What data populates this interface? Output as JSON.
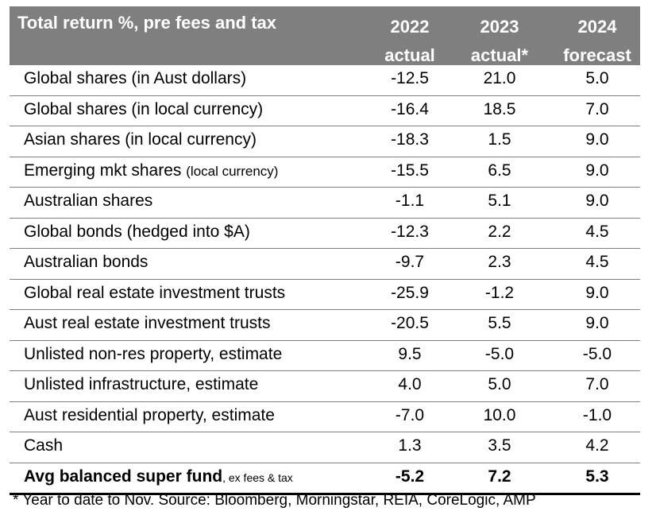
{
  "chart_data": {
    "type": "table",
    "header": {
      "title": "Total return %, pre fees and tax",
      "columns": [
        {
          "year": "2022",
          "sub": "actual"
        },
        {
          "year": "2023",
          "sub": "actual*"
        },
        {
          "year": "2024",
          "sub": "forecast"
        }
      ]
    },
    "rows": [
      {
        "label": "Global shares (in Aust dollars)",
        "note": "",
        "values": [
          "-12.5",
          "21.0",
          "5.0"
        ]
      },
      {
        "label": "Global shares (in local currency)",
        "note": "",
        "values": [
          "-16.4",
          "18.5",
          "7.0"
        ]
      },
      {
        "label": "Asian shares (in local currency)",
        "note": "",
        "values": [
          "-18.3",
          "1.5",
          "9.0"
        ]
      },
      {
        "label": "Emerging mkt shares ",
        "note": "(local currency)",
        "values": [
          "-15.5",
          "6.5",
          "9.0"
        ]
      },
      {
        "label": "Australian shares",
        "note": "",
        "values": [
          "-1.1",
          "5.1",
          "9.0"
        ]
      },
      {
        "label": "Global bonds (hedged into $A)",
        "note": "",
        "values": [
          "-12.3",
          "2.2",
          "4.5"
        ]
      },
      {
        "label": "Australian bonds",
        "note": "",
        "values": [
          "-9.7",
          "2.3",
          "4.5"
        ]
      },
      {
        "label": "Global real estate investment trusts",
        "note": "",
        "values": [
          "-25.9",
          "-1.2",
          "9.0"
        ]
      },
      {
        "label": "Aust real estate investment trusts",
        "note": "",
        "values": [
          "-20.5",
          "5.5",
          "9.0"
        ]
      },
      {
        "label": "Unlisted non-res property, estimate",
        "note": "",
        "values": [
          "9.5",
          "-5.0",
          "-5.0"
        ]
      },
      {
        "label": "Unlisted infrastructure, estimate",
        "note": "",
        "values": [
          "4.0",
          "5.0",
          "7.0"
        ]
      },
      {
        "label": "Aust residential property, estimate",
        "note": "",
        "values": [
          "-7.0",
          "10.0",
          "-1.0"
        ]
      },
      {
        "label": "Cash",
        "note": "",
        "values": [
          "1.3",
          "3.5",
          "4.2"
        ]
      }
    ],
    "total": {
      "label": "Avg balanced super fund",
      "note": ", ex fees & tax",
      "values": [
        "-5.2",
        "7.2",
        "5.3"
      ]
    },
    "footnote": "* Year to date to Nov. Source: Bloomberg, Morningstar, REIA, CoreLogic, AMP"
  }
}
